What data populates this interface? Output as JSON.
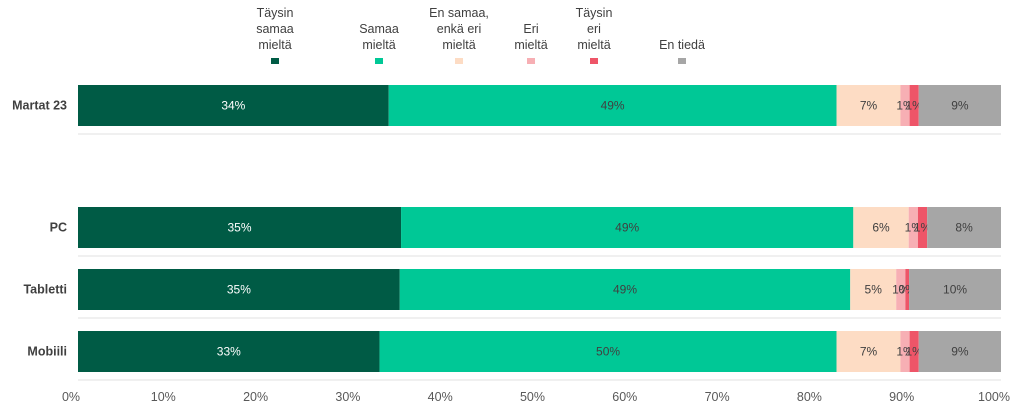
{
  "chart_data": {
    "type": "bar",
    "orientation": "horizontal",
    "stacked": true,
    "legend_position": "top",
    "categories": [
      "Martat 23",
      "PC",
      "Tabletti",
      "Mobiili"
    ],
    "series": [
      {
        "name": "Täysin samaa mieltä",
        "name_lines": [
          "Täysin",
          "samaa",
          "mieltä"
        ],
        "color": "#005B45",
        "label_color": "#ffffff",
        "values": [
          34,
          35,
          35,
          33
        ],
        "labels": [
          "34%",
          "35%",
          "35%",
          "33%"
        ]
      },
      {
        "name": "Samaa mieltä",
        "name_lines": [
          "Samaa",
          "mieltä"
        ],
        "color": "#00C896",
        "label_color": "#404040",
        "values": [
          49,
          49,
          49,
          50
        ],
        "labels": [
          "49%",
          "49%",
          "49%",
          "50%"
        ]
      },
      {
        "name": "En samaa, enkä eri mieltä",
        "name_lines": [
          "En samaa,",
          "enkä eri",
          "mieltä"
        ],
        "color": "#FDDCC4",
        "label_color": "#404040",
        "values": [
          7,
          6,
          5,
          7
        ],
        "labels": [
          "7%",
          "6%",
          "5%",
          "7%"
        ]
      },
      {
        "name": "Eri mieltä",
        "name_lines": [
          "Eri",
          "mieltä"
        ],
        "color": "#F7AFB4",
        "label_color": "#404040",
        "values": [
          1,
          1,
          1,
          1
        ],
        "labels": [
          "1%",
          "1%",
          "1%",
          "1%"
        ]
      },
      {
        "name": "Täysin eri mieltä",
        "name_lines": [
          "Täysin",
          "eri",
          "mieltä"
        ],
        "color": "#EE5568",
        "label_color": "#404040",
        "values": [
          1,
          1,
          0.4,
          1
        ],
        "labels": [
          "1%",
          "1%",
          "0%",
          "1%"
        ]
      },
      {
        "name": "En tiedä",
        "name_lines": [
          "En tiedä"
        ],
        "color": "#A6A6A6",
        "label_color": "#404040",
        "values": [
          9,
          8,
          10,
          9
        ],
        "labels": [
          "9%",
          "8%",
          "10%",
          "9%"
        ]
      }
    ],
    "x_ticks": [
      "0%",
      "10%",
      "20%",
      "30%",
      "40%",
      "50%",
      "60%",
      "70%",
      "80%",
      "90%",
      "100%"
    ],
    "xlim": [
      0,
      100
    ],
    "grid": false
  }
}
